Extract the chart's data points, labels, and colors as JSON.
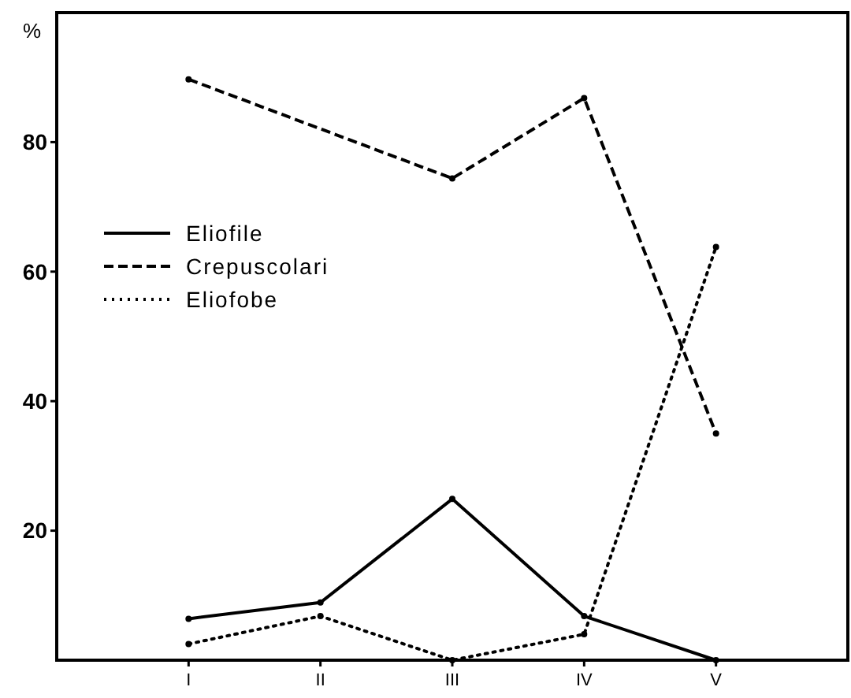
{
  "chart_data": {
    "type": "line",
    "ylabel": "%",
    "categories": [
      "I",
      "II",
      "III",
      "IV",
      "V"
    ],
    "series": [
      {
        "name": "Eliofile",
        "color": "#000000",
        "line_style": "solid",
        "values": [
          6.4,
          8.9,
          24.9,
          6.8,
          0
        ]
      },
      {
        "name": "Crepuscolari",
        "color": "#000000",
        "line_style": "dashed",
        "values": [
          89.7,
          null,
          74.4,
          86.8,
          35
        ]
      },
      {
        "name": "Eliofobe",
        "color": "#000000",
        "line_style": "dotted",
        "values": [
          2.5,
          6.8,
          0,
          4,
          63.8
        ]
      }
    ],
    "ylim": [
      0,
      100
    ],
    "yticks": [
      20,
      40,
      60,
      80
    ],
    "grid": false,
    "legend": "left",
    "marker": "circle"
  }
}
